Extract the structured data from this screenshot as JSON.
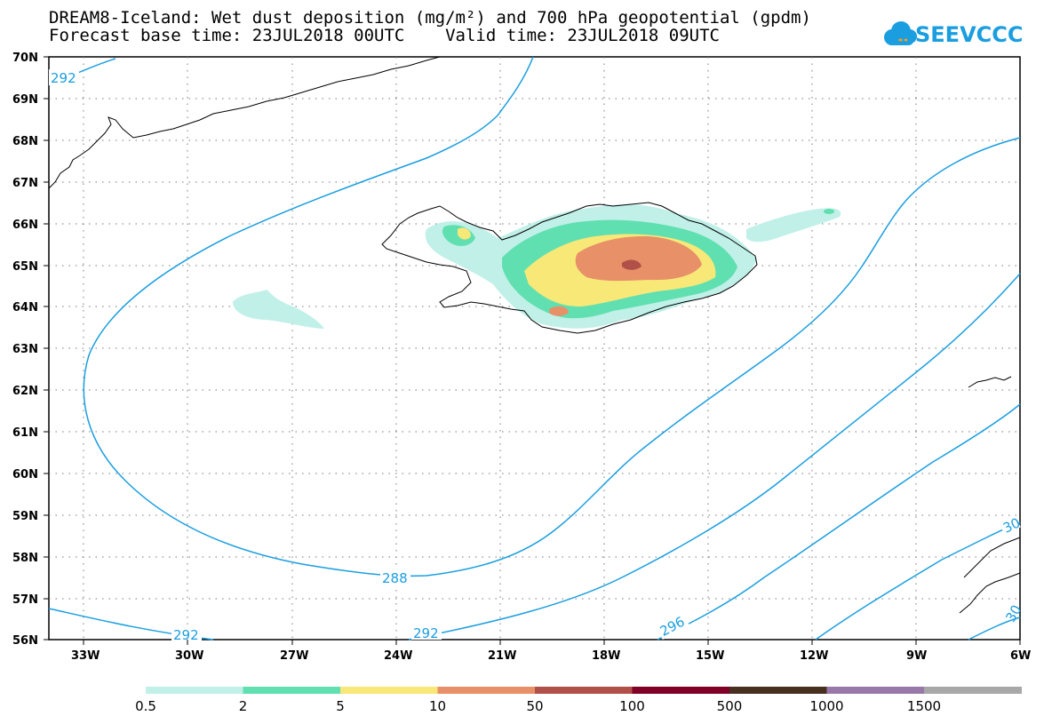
{
  "title": {
    "line1": "DREAM8-Iceland: Wet dust deposition (mg/m²) and 700 hPa geopotential (gpdm)",
    "line2": "Forecast base time: 23JUL2018 00UTC    Valid time: 23JUL2018 09UTC"
  },
  "logo": {
    "text": "SEEVCCC",
    "icon": "cloud-icon",
    "color": "#1a9ee0"
  },
  "map": {
    "lat_labels": [
      "70N",
      "69N",
      "68N",
      "67N",
      "66N",
      "65N",
      "64N",
      "63N",
      "62N",
      "61N",
      "60N",
      "59N",
      "58N",
      "57N",
      "56N"
    ],
    "lon_labels": [
      "33W",
      "30W",
      "27W",
      "24W",
      "21W",
      "18W",
      "15W",
      "12W",
      "9W",
      "6W"
    ],
    "contour_labels": [
      "292",
      "288",
      "292",
      "292",
      "296",
      "30",
      "30"
    ],
    "contour_color": "#1a9ee0",
    "coastline_color": "#000000"
  },
  "legend": {
    "colors": [
      "#c0f0e8",
      "#60e0b0",
      "#f8e878",
      "#e89068",
      "#b05048",
      "#800028",
      "#483020",
      "#9878a8",
      "#a8a8a8"
    ],
    "labels": [
      "0.5",
      "2",
      "5",
      "10",
      "50",
      "100",
      "500",
      "1000",
      "1500"
    ]
  }
}
